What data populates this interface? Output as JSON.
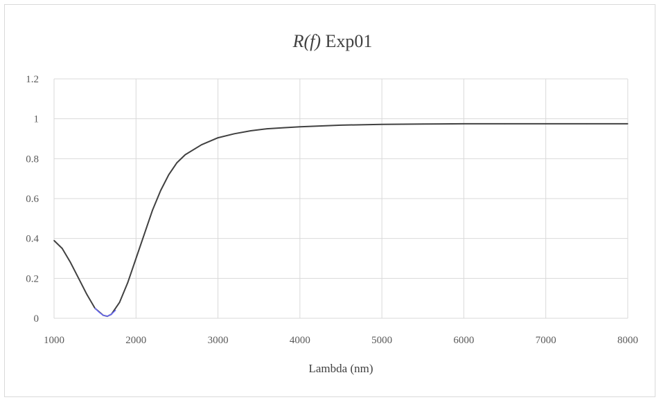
{
  "chart_data": {
    "type": "line",
    "title_italic": "R(f)",
    "title_rest": " Exp01",
    "xlabel": "Lambda (nm)",
    "ylabel": "",
    "xlim": [
      1000,
      8000
    ],
    "ylim": [
      0,
      1.2
    ],
    "x_ticks": [
      "1000",
      "2000",
      "3000",
      "4000",
      "5000",
      "6000",
      "7000",
      "8000"
    ],
    "y_ticks": [
      "0",
      "0.2",
      "0.4",
      "0.6",
      "0.8",
      "1",
      "1.2"
    ],
    "grid": true,
    "series": [
      {
        "color": "#404040",
        "x": [
          1000,
          1100,
          1200,
          1300,
          1400,
          1500,
          1600,
          1650,
          1700,
          1800,
          1900,
          2000,
          2100,
          2200,
          2300,
          2400,
          2500,
          2600,
          2800,
          3000,
          3200,
          3400,
          3600,
          3800,
          4000,
          4500,
          5000,
          5500,
          6000,
          6500,
          7000,
          7500,
          8000
        ],
        "y": [
          0.39,
          0.35,
          0.28,
          0.2,
          0.12,
          0.05,
          0.015,
          0.01,
          0.02,
          0.08,
          0.18,
          0.3,
          0.42,
          0.54,
          0.64,
          0.72,
          0.78,
          0.82,
          0.87,
          0.905,
          0.925,
          0.94,
          0.95,
          0.955,
          0.96,
          0.968,
          0.972,
          0.974,
          0.975,
          0.975,
          0.975,
          0.975,
          0.975
        ]
      }
    ],
    "highlight": {
      "color": "#6a6aff",
      "x": [
        1500,
        1550,
        1600,
        1650,
        1700,
        1750
      ],
      "y": [
        0.05,
        0.03,
        0.015,
        0.01,
        0.02,
        0.04
      ]
    }
  }
}
